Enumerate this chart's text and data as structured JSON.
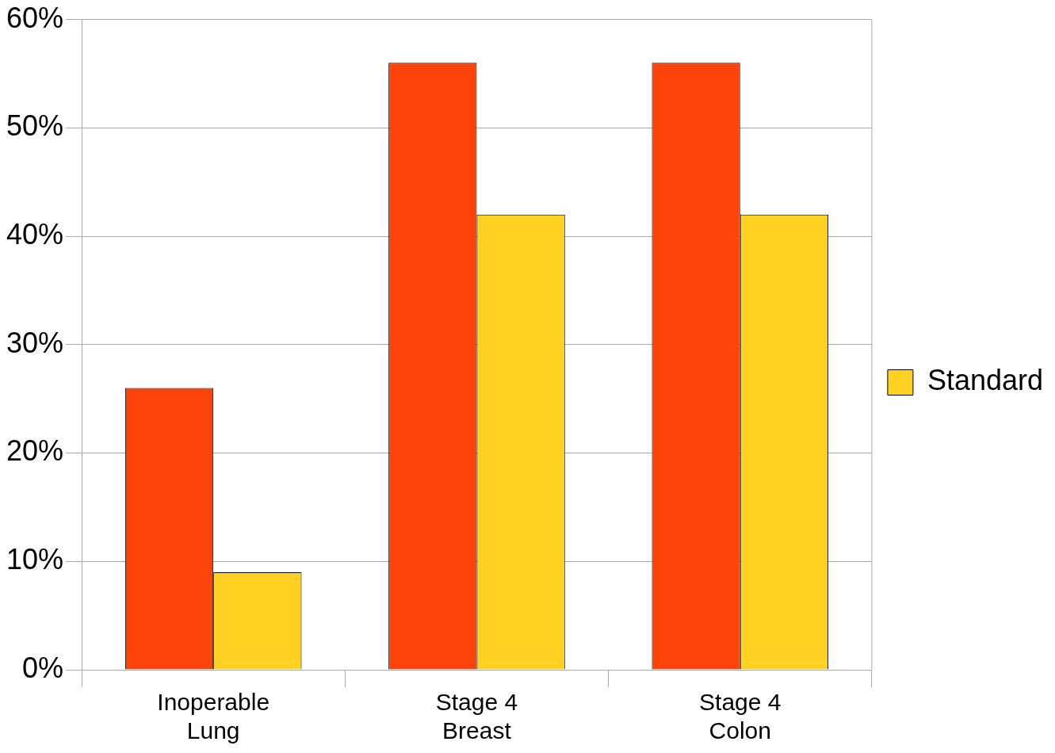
{
  "chart_data": {
    "type": "bar",
    "categories": [
      "Inoperable Lung",
      "Stage 4 Breast",
      "Stage 4 Colon"
    ],
    "series": [
      {
        "color": "#fc4309",
        "values": [
          26,
          56,
          56
        ]
      },
      {
        "name": "Standard",
        "color": "#fed123",
        "values": [
          9,
          42,
          42
        ]
      }
    ],
    "ylim": [
      0,
      60
    ],
    "yticks": [
      {
        "value": 0,
        "label": "0%"
      },
      {
        "value": 10,
        "label": "10%"
      },
      {
        "value": 20,
        "label": "20%"
      },
      {
        "value": 30,
        "label": "30%"
      },
      {
        "value": 40,
        "label": "40%"
      },
      {
        "value": 50,
        "label": "50%"
      },
      {
        "value": 60,
        "label": "60%"
      }
    ],
    "grid": "y",
    "legend": "right"
  }
}
